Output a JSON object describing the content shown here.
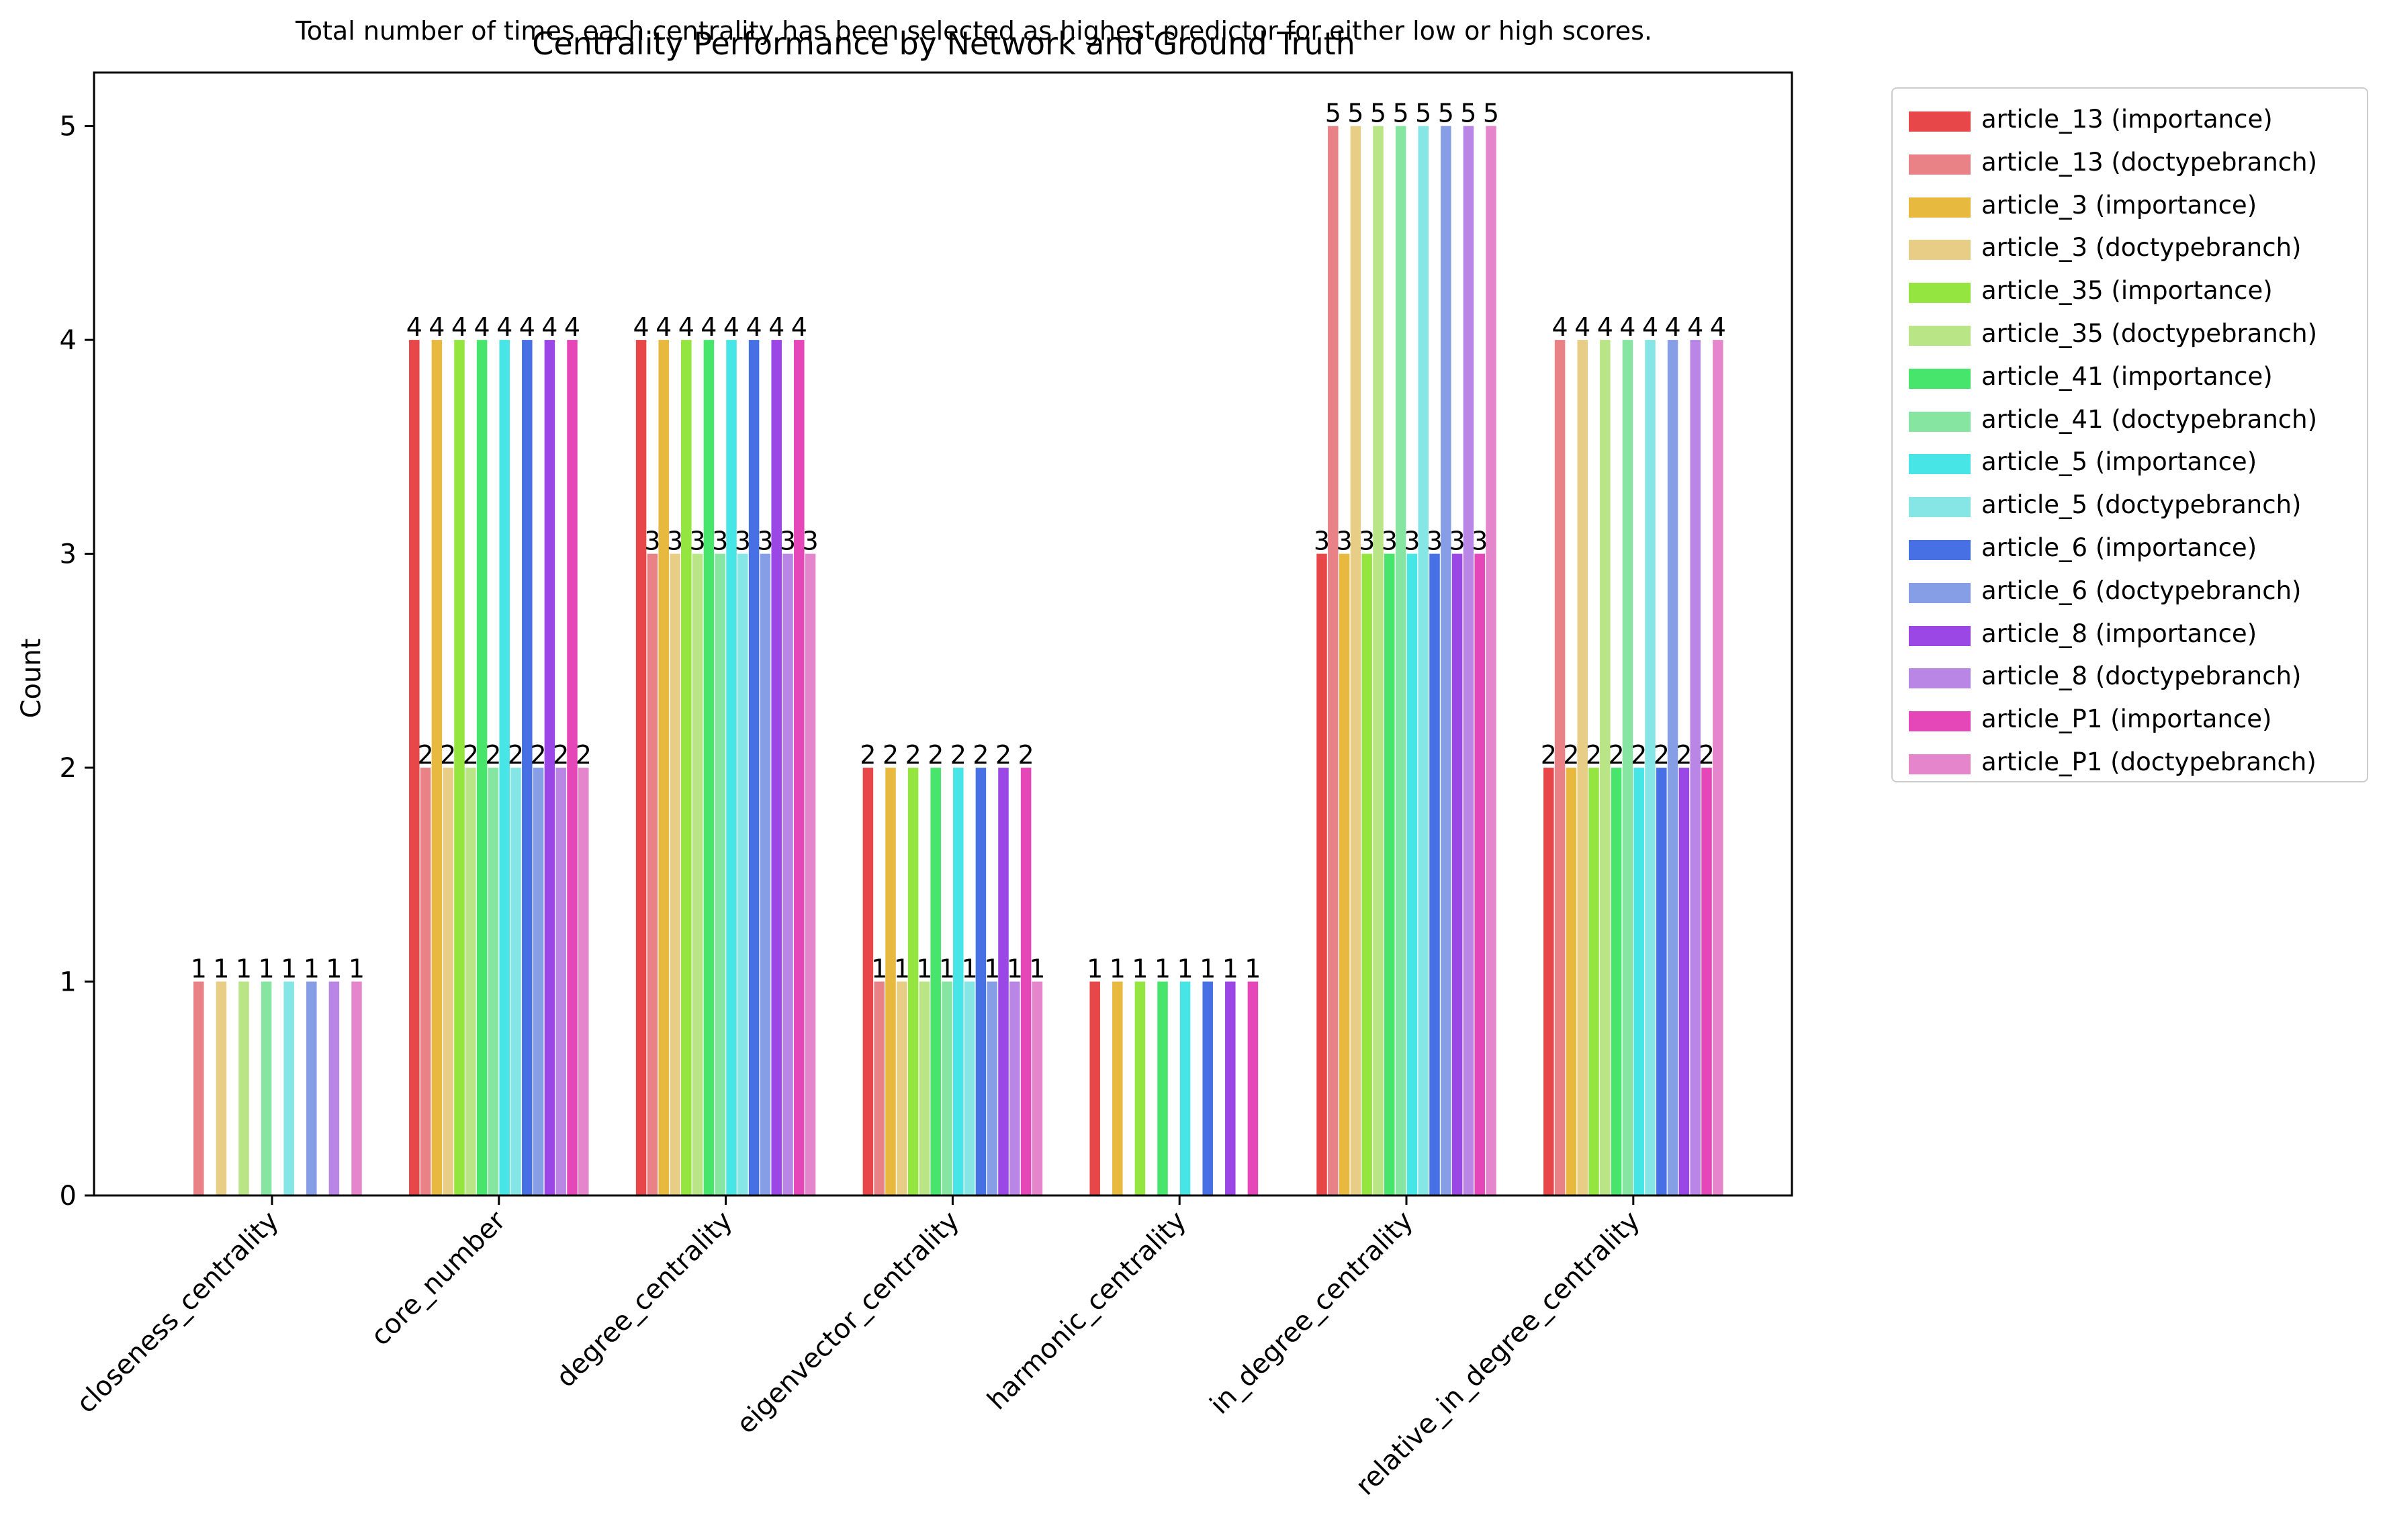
{
  "suptitle": "Total number of times each centrality has been selected as highest predictor for either low or high scores.",
  "chart_data": {
    "type": "bar",
    "title": "Centrality Performance by Network and Ground Truth",
    "xlabel": "",
    "ylabel": "Count",
    "ylim": [
      0,
      5.25
    ],
    "yticks": [
      0,
      1,
      2,
      3,
      4,
      5
    ],
    "grid": false,
    "legend_position": "outside-right",
    "categories": [
      "closeness_centrality",
      "core_number",
      "degree_centrality",
      "eigenvector_centrality",
      "harmonic_centrality",
      "in_degree_centrality",
      "relative_in_degree_centrality"
    ],
    "series": [
      {
        "name": "article_13 (importance)",
        "color": "#e8474a",
        "values": [
          0,
          4,
          4,
          2,
          1,
          3,
          2
        ]
      },
      {
        "name": "article_13 (doctypebranch)",
        "color": "#e88286",
        "values": [
          1,
          2,
          3,
          1,
          0,
          5,
          4
        ]
      },
      {
        "name": "article_3 (importance)",
        "color": "#e8b93f",
        "values": [
          0,
          4,
          4,
          2,
          1,
          3,
          2
        ]
      },
      {
        "name": "article_3 (doctypebranch)",
        "color": "#e8cd86",
        "values": [
          1,
          2,
          3,
          1,
          0,
          5,
          4
        ]
      },
      {
        "name": "article_35 (importance)",
        "color": "#94e53f",
        "values": [
          0,
          4,
          4,
          2,
          1,
          3,
          2
        ]
      },
      {
        "name": "article_35 (doctypebranch)",
        "color": "#b9e586",
        "values": [
          1,
          2,
          3,
          1,
          0,
          5,
          4
        ]
      },
      {
        "name": "article_41 (importance)",
        "color": "#47e56c",
        "values": [
          0,
          4,
          4,
          2,
          1,
          3,
          2
        ]
      },
      {
        "name": "article_41 (doctypebranch)",
        "color": "#86e5a0",
        "values": [
          1,
          2,
          3,
          1,
          0,
          5,
          4
        ]
      },
      {
        "name": "article_5 (importance)",
        "color": "#47e5e5",
        "values": [
          0,
          4,
          4,
          2,
          1,
          3,
          2
        ]
      },
      {
        "name": "article_5 (doctypebranch)",
        "color": "#86e5e5",
        "values": [
          1,
          2,
          3,
          1,
          0,
          5,
          4
        ]
      },
      {
        "name": "article_6 (importance)",
        "color": "#4770e5",
        "values": [
          0,
          4,
          4,
          2,
          1,
          3,
          2
        ]
      },
      {
        "name": "article_6 (doctypebranch)",
        "color": "#869ee5",
        "values": [
          1,
          2,
          3,
          1,
          0,
          5,
          4
        ]
      },
      {
        "name": "article_8 (importance)",
        "color": "#9a47e5",
        "values": [
          0,
          4,
          4,
          2,
          1,
          3,
          2
        ]
      },
      {
        "name": "article_8 (doctypebranch)",
        "color": "#b986e5",
        "values": [
          1,
          2,
          3,
          1,
          0,
          5,
          4
        ]
      },
      {
        "name": "article_P1 (importance)",
        "color": "#e547b9",
        "values": [
          0,
          4,
          4,
          2,
          1,
          3,
          2
        ]
      },
      {
        "name": "article_P1 (doctypebranch)",
        "color": "#e586cd",
        "values": [
          1,
          2,
          3,
          1,
          0,
          5,
          4
        ]
      }
    ]
  }
}
